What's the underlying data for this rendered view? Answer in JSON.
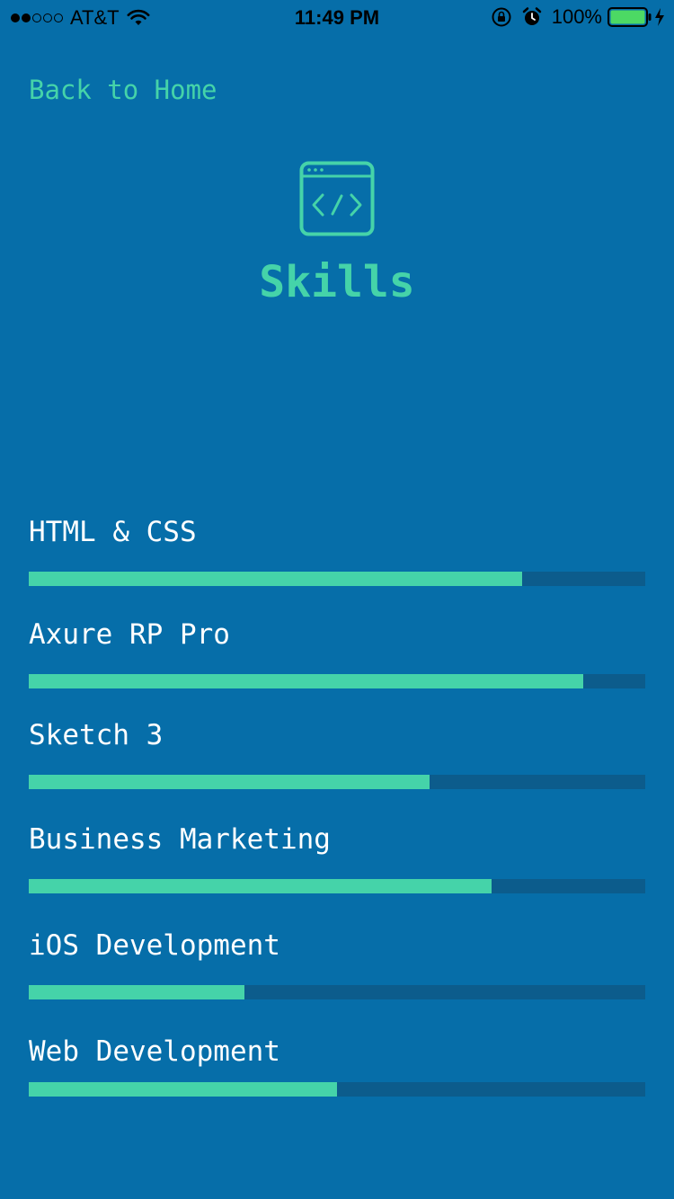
{
  "status_bar": {
    "carrier": "AT&T",
    "time": "11:49 PM",
    "battery": "100%",
    "signal_filled": 2,
    "signal_total": 5,
    "icons": [
      "wifi-icon",
      "rotation-lock-icon",
      "alarm-icon",
      "battery-icon",
      "charging-bolt-icon"
    ]
  },
  "nav": {
    "back_label": "Back to Home"
  },
  "header": {
    "icon": "code-window-icon",
    "title": "Skills"
  },
  "colors": {
    "background": "#066ea9",
    "accent": "#45d3a9",
    "track": "#0c5c8c",
    "text": "#ffffff"
  },
  "skills": [
    {
      "label": "HTML & CSS",
      "level": 0.8
    },
    {
      "label": "Axure RP Pro",
      "level": 0.9
    },
    {
      "label": "Sketch 3",
      "level": 0.65
    },
    {
      "label": "Business Marketing",
      "level": 0.75
    },
    {
      "label": "iOS Development",
      "level": 0.35
    },
    {
      "label": "Web Development",
      "level": 0.5
    }
  ]
}
